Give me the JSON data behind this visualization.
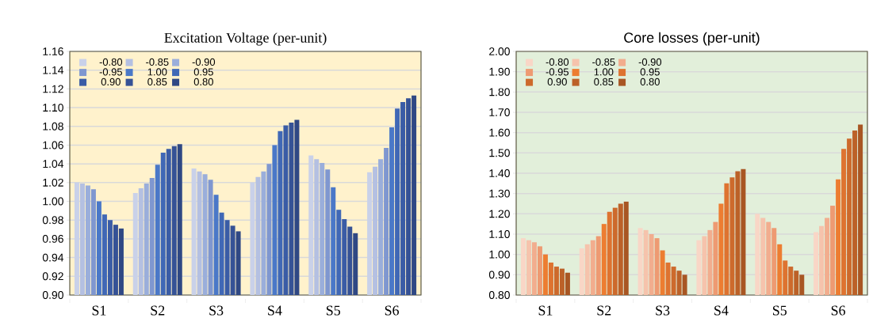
{
  "chart_data": [
    {
      "type": "bar",
      "title": "Excitation Voltage (per-unit)",
      "categories": [
        "S1",
        "S2",
        "S3",
        "S4",
        "S5",
        "S6"
      ],
      "ylim": [
        0.9,
        1.16
      ],
      "yticks": [
        {
          "value": 0.9,
          "label": "0.90"
        },
        0.92,
        0.94,
        0.96,
        0.98,
        {
          "value": 1.0,
          "label": "1.00"
        },
        1.02,
        1.04,
        1.06,
        1.08,
        {
          "value": 1.1,
          "label": "1.10"
        },
        1.12,
        1.14,
        1.16
      ],
      "grid": "y",
      "legend": "top left",
      "series": [
        {
          "name": "-0.80",
          "color": "#c9d1e9",
          "values": [
            1.02,
            1.009,
            1.035,
            1.02,
            1.049,
            1.031
          ]
        },
        {
          "name": "-0.85",
          "color": "#b4c0e2",
          "values": [
            1.019,
            1.014,
            1.032,
            1.026,
            1.045,
            1.037
          ]
        },
        {
          "name": "-0.90",
          "color": "#9aaedb",
          "values": [
            1.017,
            1.019,
            1.029,
            1.032,
            1.041,
            1.045
          ]
        },
        {
          "name": "-0.95",
          "color": "#7f97d0",
          "values": [
            1.013,
            1.025,
            1.023,
            1.04,
            1.034,
            1.057
          ]
        },
        {
          "name": "1.00",
          "color": "#4a78c8",
          "values": [
            1.0,
            1.039,
            1.007,
            1.06,
            1.015,
            1.079
          ]
        },
        {
          "name": "0.95",
          "color": "#4068b6",
          "values": [
            0.986,
            1.052,
            0.988,
            1.075,
            0.991,
            1.099
          ]
        },
        {
          "name": "0.90",
          "color": "#3a5ca6",
          "values": [
            0.98,
            1.056,
            0.98,
            1.081,
            0.981,
            1.106
          ]
        },
        {
          "name": "0.85",
          "color": "#355296",
          "values": [
            0.975,
            1.059,
            0.974,
            1.084,
            0.973,
            1.11
          ]
        },
        {
          "name": "0.80",
          "color": "#2f4884",
          "values": [
            0.971,
            1.061,
            0.968,
            1.087,
            0.966,
            1.113
          ]
        }
      ]
    },
    {
      "type": "bar",
      "title": "Core losses (per-unit)",
      "categories": [
        "S1",
        "S2",
        "S3",
        "S4",
        "S5",
        "S6"
      ],
      "ylim": [
        0.8,
        2.0
      ],
      "yticks": [
        {
          "value": 0.8,
          "label": "0.80"
        },
        {
          "value": 0.9,
          "label": "0.90"
        },
        {
          "value": 1.0,
          "label": "1.00"
        },
        {
          "value": 1.1,
          "label": "1.10"
        },
        {
          "value": 1.2,
          "label": "1.20"
        },
        {
          "value": 1.3,
          "label": "1.30"
        },
        {
          "value": 1.4,
          "label": "1.40"
        },
        {
          "value": 1.5,
          "label": "1.50"
        },
        {
          "value": 1.6,
          "label": "1.60"
        },
        {
          "value": 1.7,
          "label": "1.70"
        },
        {
          "value": 1.8,
          "label": "1.80"
        },
        {
          "value": 1.9,
          "label": "1.90"
        },
        {
          "value": 2.0,
          "label": "2.00"
        }
      ],
      "grid": "y",
      "legend": "top left",
      "series": [
        {
          "name": "-0.80",
          "color": "#f9d6c6",
          "values": [
            1.08,
            1.03,
            1.13,
            1.07,
            1.2,
            1.11
          ]
        },
        {
          "name": "-0.85",
          "color": "#f6c3ac",
          "values": [
            1.07,
            1.05,
            1.12,
            1.09,
            1.18,
            1.14
          ]
        },
        {
          "name": "-0.90",
          "color": "#f2ad8e",
          "values": [
            1.06,
            1.07,
            1.1,
            1.12,
            1.16,
            1.18
          ]
        },
        {
          "name": "-0.95",
          "color": "#ee9a72",
          "values": [
            1.04,
            1.09,
            1.08,
            1.16,
            1.13,
            1.24
          ]
        },
        {
          "name": "1.00",
          "color": "#ed7d31",
          "values": [
            1.0,
            1.15,
            1.02,
            1.25,
            1.05,
            1.37
          ]
        },
        {
          "name": "0.95",
          "color": "#de7330",
          "values": [
            0.96,
            1.21,
            0.96,
            1.35,
            0.97,
            1.52
          ]
        },
        {
          "name": "0.90",
          "color": "#cd6a2c",
          "values": [
            0.94,
            1.23,
            0.94,
            1.38,
            0.94,
            1.57
          ]
        },
        {
          "name": "0.85",
          "color": "#bc6128",
          "values": [
            0.93,
            1.25,
            0.92,
            1.41,
            0.92,
            1.61
          ]
        },
        {
          "name": "0.80",
          "color": "#a85623",
          "values": [
            0.91,
            1.26,
            0.9,
            1.42,
            0.9,
            1.64
          ]
        }
      ]
    }
  ]
}
